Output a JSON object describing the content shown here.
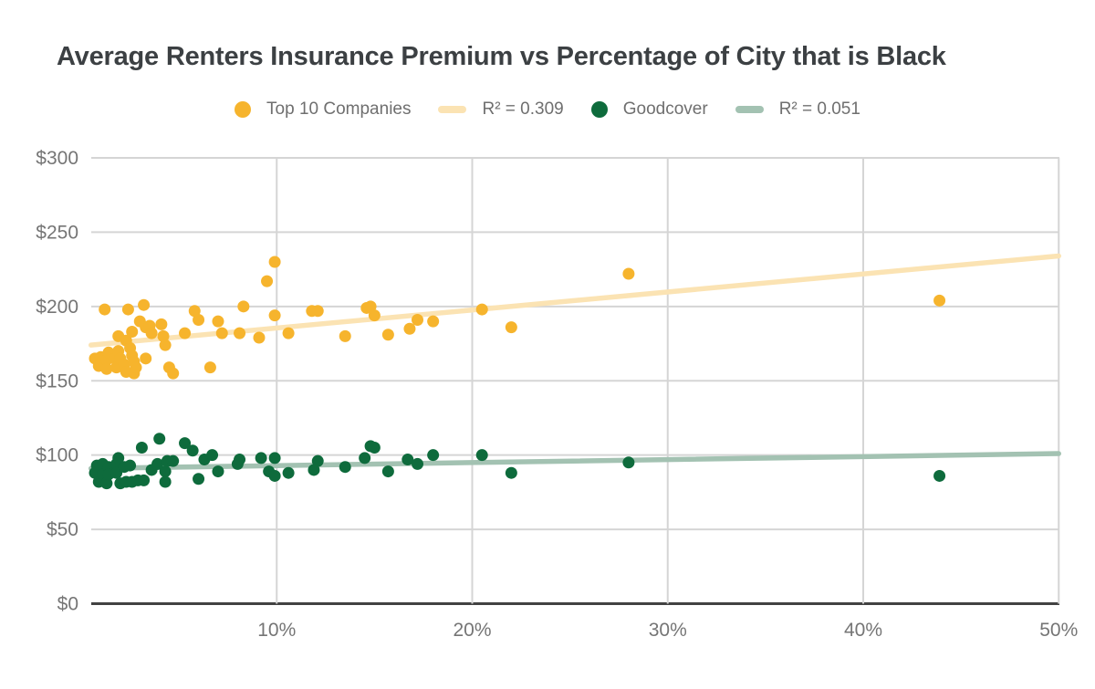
{
  "chart": {
    "title": "Average Renters Insurance Premium vs Percentage of City that is Black"
  },
  "chart_data": {
    "type": "scatter",
    "title": "Average Renters Insurance Premium vs Percentage of City that is Black",
    "xlabel": "",
    "ylabel": "",
    "x_unit": "%",
    "y_unit": "$",
    "xlim": [
      0,
      50
    ],
    "ylim": [
      0,
      300
    ],
    "grid": true,
    "legend_position": "top",
    "x_ticks": [
      {
        "value": 10,
        "label": "10%"
      },
      {
        "value": 20,
        "label": "20%"
      },
      {
        "value": 30,
        "label": "30%"
      },
      {
        "value": 40,
        "label": "40%"
      },
      {
        "value": 50,
        "label": "50%"
      }
    ],
    "y_ticks": [
      {
        "value": 0,
        "label": "$0"
      },
      {
        "value": 50,
        "label": "$50"
      },
      {
        "value": 100,
        "label": "$100"
      },
      {
        "value": 150,
        "label": "$150"
      },
      {
        "value": 200,
        "label": "$200"
      },
      {
        "value": 250,
        "label": "$250"
      },
      {
        "value": 300,
        "label": "$300"
      }
    ],
    "series": [
      {
        "name": "Top 10 Companies",
        "color": "#F6B42D",
        "marker": "circle",
        "points": [
          [
            0.7,
            165
          ],
          [
            0.9,
            160
          ],
          [
            1.0,
            166
          ],
          [
            1.2,
            198
          ],
          [
            1.3,
            164
          ],
          [
            1.3,
            158
          ],
          [
            1.4,
            169
          ],
          [
            1.7,
            165
          ],
          [
            1.8,
            159
          ],
          [
            1.9,
            180
          ],
          [
            1.9,
            170
          ],
          [
            2.0,
            165
          ],
          [
            2.2,
            161
          ],
          [
            2.3,
            177
          ],
          [
            2.3,
            156
          ],
          [
            2.4,
            198
          ],
          [
            2.5,
            172
          ],
          [
            2.6,
            183
          ],
          [
            2.6,
            167
          ],
          [
            2.7,
            163
          ],
          [
            2.7,
            155
          ],
          [
            2.8,
            159
          ],
          [
            3.0,
            190
          ],
          [
            3.2,
            201
          ],
          [
            3.3,
            186
          ],
          [
            3.3,
            165
          ],
          [
            3.5,
            187
          ],
          [
            3.6,
            182
          ],
          [
            4.1,
            188
          ],
          [
            4.2,
            180
          ],
          [
            4.3,
            174
          ],
          [
            4.5,
            159
          ],
          [
            4.7,
            155
          ],
          [
            5.3,
            182
          ],
          [
            5.8,
            197
          ],
          [
            6.0,
            191
          ],
          [
            6.6,
            159
          ],
          [
            7.0,
            190
          ],
          [
            7.2,
            182
          ],
          [
            8.1,
            182
          ],
          [
            8.3,
            200
          ],
          [
            9.1,
            179
          ],
          [
            9.5,
            217
          ],
          [
            9.9,
            230
          ],
          [
            9.9,
            194
          ],
          [
            10.6,
            182
          ],
          [
            11.8,
            197
          ],
          [
            12.1,
            197
          ],
          [
            13.5,
            180
          ],
          [
            14.6,
            199
          ],
          [
            14.8,
            200
          ],
          [
            15.0,
            194
          ],
          [
            15.7,
            181
          ],
          [
            16.8,
            185
          ],
          [
            17.2,
            191
          ],
          [
            18.0,
            190
          ],
          [
            20.5,
            198
          ],
          [
            22.0,
            186
          ],
          [
            28.0,
            222
          ],
          [
            43.9,
            204
          ]
        ]
      },
      {
        "name": "Goodcover",
        "color": "#0E6B3C",
        "marker": "circle",
        "points": [
          [
            0.7,
            88
          ],
          [
            0.8,
            93
          ],
          [
            0.9,
            82
          ],
          [
            1.1,
            94
          ],
          [
            1.1,
            87
          ],
          [
            1.3,
            81
          ],
          [
            1.4,
            92
          ],
          [
            1.4,
            87
          ],
          [
            1.8,
            94
          ],
          [
            1.8,
            88
          ],
          [
            1.9,
            98
          ],
          [
            2.0,
            81
          ],
          [
            2.2,
            92
          ],
          [
            2.3,
            82
          ],
          [
            2.5,
            93
          ],
          [
            2.6,
            82
          ],
          [
            2.9,
            83
          ],
          [
            3.1,
            105
          ],
          [
            3.2,
            83
          ],
          [
            3.6,
            90
          ],
          [
            3.9,
            94
          ],
          [
            4.0,
            111
          ],
          [
            4.3,
            89
          ],
          [
            4.3,
            82
          ],
          [
            4.4,
            96
          ],
          [
            4.7,
            96
          ],
          [
            5.3,
            108
          ],
          [
            5.7,
            103
          ],
          [
            6.0,
            84
          ],
          [
            6.3,
            97
          ],
          [
            6.7,
            100
          ],
          [
            7.0,
            89
          ],
          [
            8.0,
            94
          ],
          [
            8.1,
            97
          ],
          [
            9.2,
            98
          ],
          [
            9.6,
            89
          ],
          [
            9.9,
            98
          ],
          [
            9.9,
            86
          ],
          [
            10.6,
            88
          ],
          [
            11.9,
            90
          ],
          [
            12.1,
            96
          ],
          [
            13.5,
            92
          ],
          [
            14.5,
            98
          ],
          [
            14.8,
            106
          ],
          [
            15.0,
            105
          ],
          [
            15.7,
            89
          ],
          [
            16.7,
            97
          ],
          [
            17.2,
            94
          ],
          [
            18.0,
            100
          ],
          [
            20.5,
            100
          ],
          [
            22.0,
            88
          ],
          [
            28.0,
            95
          ],
          [
            43.9,
            86
          ]
        ]
      }
    ],
    "trendlines": [
      {
        "for": "Top 10 Companies",
        "label": "R² = 0.309",
        "r_squared": 0.309,
        "color": "#FBE3B3",
        "start": [
          0.5,
          174
        ],
        "end": [
          50,
          234
        ]
      },
      {
        "for": "Goodcover",
        "label": "R² = 0.051",
        "r_squared": 0.051,
        "color": "#A3C2B2",
        "start": [
          0.5,
          91
        ],
        "end": [
          50,
          101
        ]
      }
    ],
    "colors": {
      "gridline": "#D5D5D5",
      "axis_line": "#424242",
      "tick_label": "#757575",
      "title": "#3C4043",
      "legend_text": "#6F6F6F"
    }
  }
}
